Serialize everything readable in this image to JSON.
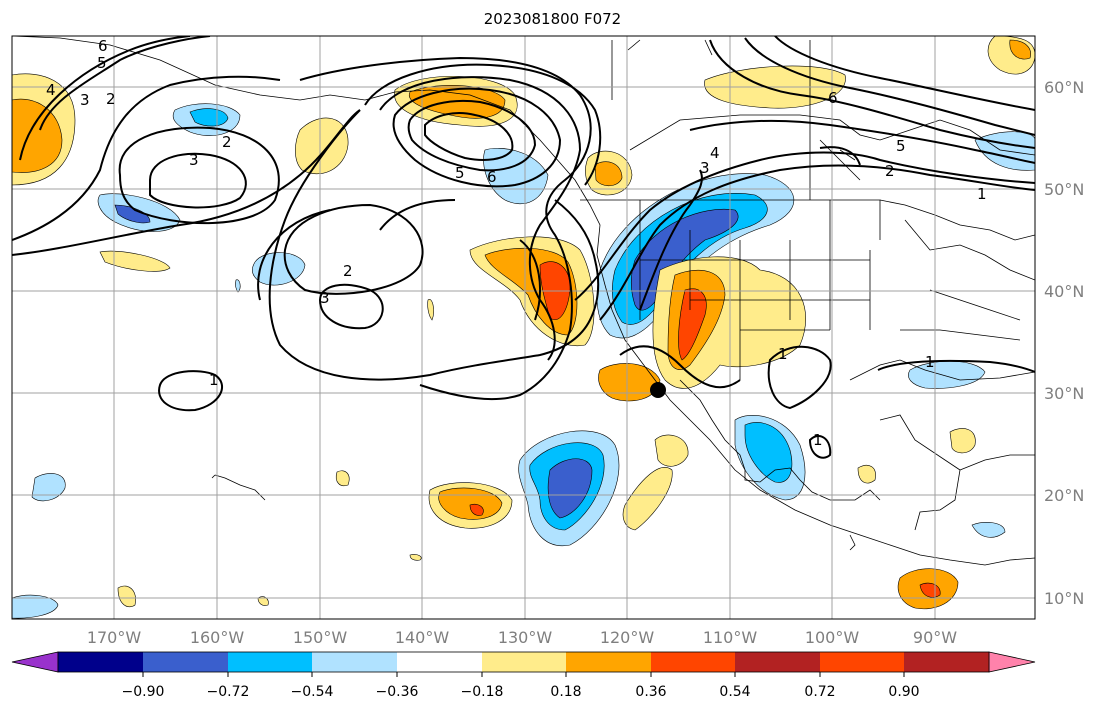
{
  "title": "2023081800 F072",
  "map": {
    "lon_range": [
      -180,
      -80
    ],
    "lat_range": [
      8,
      65
    ],
    "gridlines": true,
    "marker": {
      "lon": -116.8,
      "lat": 30.3,
      "color": "#000000"
    }
  },
  "lon_labels": [
    "170°W",
    "160°W",
    "150°W",
    "140°W",
    "130°W",
    "120°W",
    "110°W",
    "100°W",
    "90°W"
  ],
  "lat_labels": [
    "60°N",
    "50°N",
    "40°N",
    "30°N",
    "20°N",
    "10°N"
  ],
  "colorbar": {
    "colors": [
      "#9932cc",
      "#00008b",
      "#3a5fcd",
      "#00bfff",
      "#b0e2ff",
      "#ffffff",
      "#ffec8b",
      "#ffa500",
      "#ff4500",
      "#b22222",
      "#ff82ab"
    ],
    "tick_labels": [
      "−0.90",
      "−0.72",
      "−0.54",
      "−0.36",
      "−0.18",
      "0.18",
      "0.36",
      "0.54",
      "0.72",
      "0.90"
    ],
    "extend": "both"
  },
  "contour_labels": [
    "6",
    "5",
    "4",
    "3",
    "2",
    "2",
    "3",
    "2",
    "3",
    "1",
    "5",
    "6",
    "4",
    "3",
    "6",
    "5",
    "2",
    "1",
    "1",
    "1",
    "1"
  ]
}
